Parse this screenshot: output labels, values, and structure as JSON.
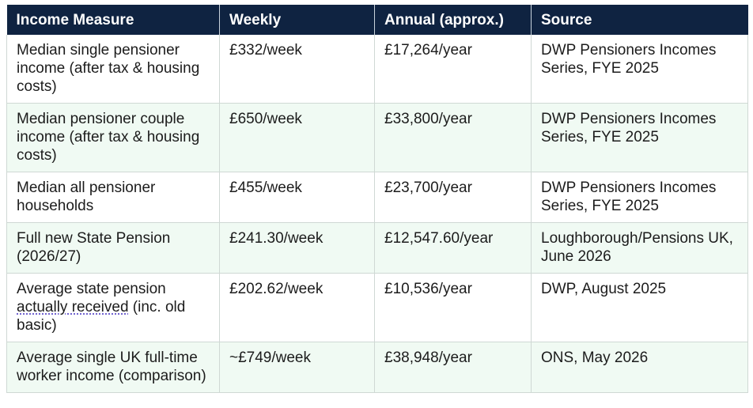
{
  "table": {
    "headers": [
      "Income Measure",
      "Weekly",
      "Annual (approx.)",
      "Source"
    ],
    "rows": [
      {
        "measure": "Median single pensioner income (after tax & housing costs)",
        "weekly": "£332/week",
        "annual": "£17,264/year",
        "source": "DWP Pensioners Incomes Series, FYE 2025"
      },
      {
        "measure": "Median pensioner couple income (after tax & housing costs)",
        "weekly": "£650/week",
        "annual": "£33,800/year",
        "source": "DWP Pensioners Incomes Series, FYE 2025"
      },
      {
        "measure": "Median all pensioner households",
        "weekly": "£455/week",
        "annual": "£23,700/year",
        "source": "DWP Pensioners Incomes Series, FYE 2025"
      },
      {
        "measure": "Full new State Pension (2026/27)",
        "weekly": "£241.30/week",
        "annual": "£12,547.60/year",
        "source": "Loughborough/Pensions UK, June 2026"
      },
      {
        "measure_pre": "Average state pension ",
        "measure_link": "actually received",
        "measure_post": " (inc. old basic)",
        "weekly": "£202.62/week",
        "annual": "£10,536/year",
        "source": "DWP, August 2025"
      },
      {
        "measure": "Average single UK full-time worker income (comparison)",
        "weekly": "~£749/week",
        "annual": "£38,948/year",
        "source": "ONS, May 2026"
      }
    ]
  }
}
